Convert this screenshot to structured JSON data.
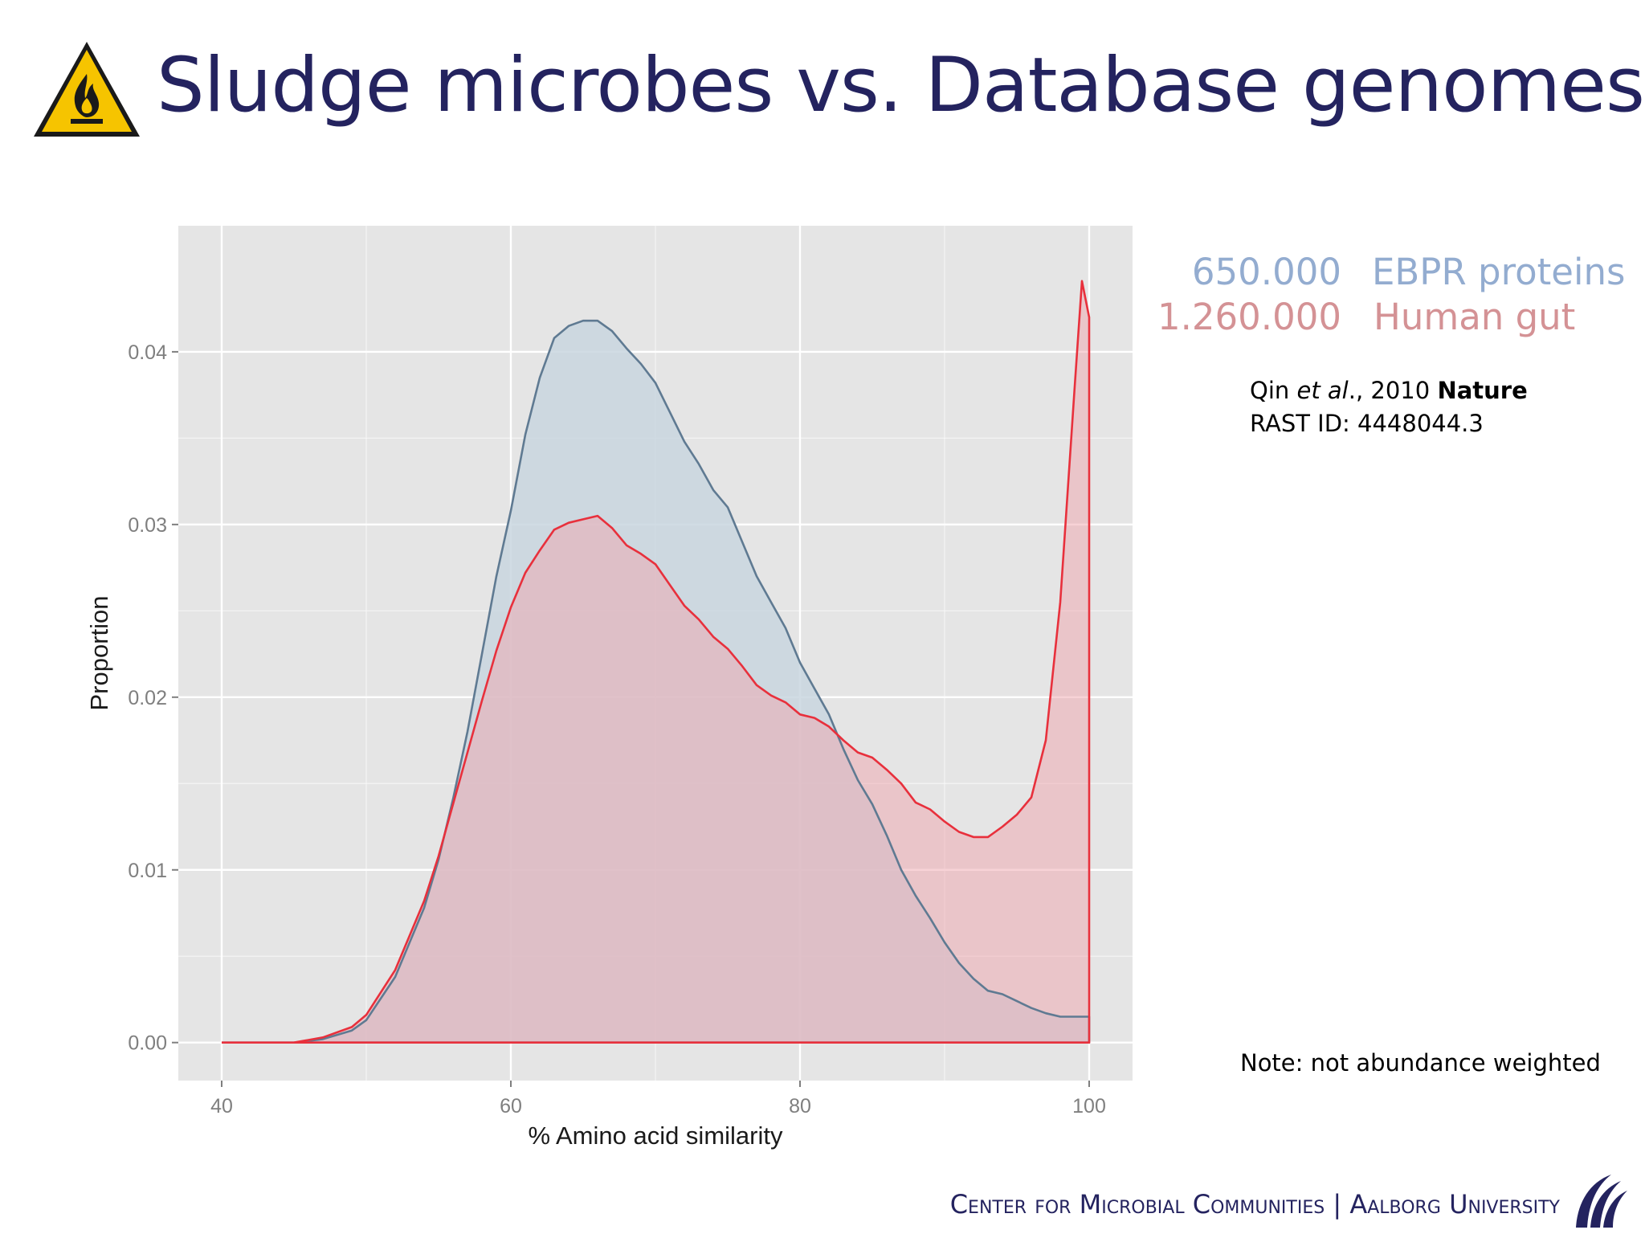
{
  "slide": {
    "title": "Sludge microbes vs. Database genomes",
    "warning_icon": "flammable-warning-icon",
    "legend": [
      {
        "count": "650.000",
        "name": "EBPR proteins",
        "color": "#93acd0"
      },
      {
        "count": "1.260.000",
        "name": "Human gut",
        "color": "#d49295"
      }
    ],
    "reference": {
      "author": "Qin ",
      "etal": "et al",
      "rest": "., 2010 ",
      "journal": "Nature",
      "rast": "RAST ID: 4448044.3"
    },
    "note": "Note: not abundance weighted",
    "footer": "Center for Microbial Communities | Aalborg University",
    "logo_icon": "aalborg-university-logo-icon"
  },
  "colors": {
    "title": "#24235f",
    "panel": "#e5e5e5",
    "grid": "#ffffff",
    "ebpr_line": "#5f7a92",
    "ebpr_fill": "#c9d6df",
    "gut_line": "#e8303c",
    "gut_fill": "#f0a6ad"
  },
  "chart_data": {
    "type": "area",
    "xlabel": "% Amino acid similarity",
    "ylabel": "Proportion",
    "xlim": [
      37,
      103
    ],
    "ylim": [
      -0.0022,
      0.0473
    ],
    "x_ticks": [
      40,
      60,
      80,
      100
    ],
    "y_ticks": [
      0.0,
      0.01,
      0.02,
      0.03,
      0.04
    ],
    "x_tick_labels": [
      "40",
      "60",
      "80",
      "100"
    ],
    "y_tick_labels": [
      "0.00",
      "0.01",
      "0.02",
      "0.03",
      "0.04"
    ],
    "grid": true,
    "series": [
      {
        "name": "EBPR proteins",
        "x": [
          40,
          45,
          47,
          49,
          50,
          52,
          54,
          55,
          56,
          57,
          58,
          59,
          60,
          61,
          62,
          63,
          64,
          65,
          66,
          67,
          68,
          69,
          70,
          71,
          72,
          73,
          74,
          75,
          76,
          77,
          78,
          79,
          80,
          81,
          82,
          83,
          84,
          85,
          86,
          87,
          88,
          89,
          90,
          91,
          92,
          93,
          94,
          95,
          96,
          97,
          98,
          99,
          100
        ],
        "y": [
          0.0,
          0.0,
          0.0002,
          0.0007,
          0.0013,
          0.0038,
          0.0078,
          0.0106,
          0.0141,
          0.018,
          0.0225,
          0.027,
          0.0308,
          0.0352,
          0.0385,
          0.0408,
          0.0415,
          0.0418,
          0.0418,
          0.0412,
          0.0402,
          0.0393,
          0.0382,
          0.0365,
          0.0348,
          0.0335,
          0.032,
          0.031,
          0.029,
          0.027,
          0.0255,
          0.024,
          0.022,
          0.0205,
          0.019,
          0.017,
          0.0152,
          0.0138,
          0.012,
          0.01,
          0.0085,
          0.0072,
          0.0058,
          0.0046,
          0.0037,
          0.003,
          0.0028,
          0.0024,
          0.002,
          0.0017,
          0.0015,
          0.0015,
          0.0015
        ]
      },
      {
        "name": "Human gut",
        "x": [
          40,
          45,
          47,
          49,
          50,
          52,
          54,
          55,
          56,
          57,
          58,
          59,
          60,
          61,
          62,
          63,
          64,
          65,
          66,
          67,
          68,
          69,
          70,
          71,
          72,
          73,
          74,
          75,
          76,
          77,
          78,
          79,
          80,
          81,
          82,
          83,
          84,
          85,
          86,
          87,
          88,
          89,
          90,
          91,
          92,
          93,
          94,
          95,
          96,
          97,
          98,
          99,
          99.5,
          100
        ],
        "y": [
          0.0,
          0.0,
          0.0003,
          0.0009,
          0.0016,
          0.0042,
          0.0082,
          0.0108,
          0.0138,
          0.0168,
          0.0198,
          0.0227,
          0.0252,
          0.0272,
          0.0285,
          0.0297,
          0.0301,
          0.0303,
          0.0305,
          0.0298,
          0.0288,
          0.0283,
          0.0277,
          0.0265,
          0.0253,
          0.0245,
          0.0235,
          0.0228,
          0.0218,
          0.0207,
          0.0201,
          0.0197,
          0.019,
          0.0188,
          0.0183,
          0.0175,
          0.0168,
          0.0165,
          0.0158,
          0.015,
          0.0139,
          0.0135,
          0.0128,
          0.0122,
          0.0119,
          0.0119,
          0.0125,
          0.0132,
          0.0142,
          0.0175,
          0.0255,
          0.038,
          0.0441,
          0.042
        ]
      }
    ]
  }
}
